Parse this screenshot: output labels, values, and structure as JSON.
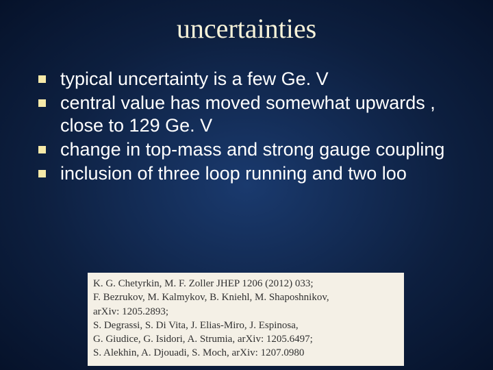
{
  "slide": {
    "title": "uncertainties",
    "title_color": "#f8f3d9",
    "title_fontsize": 40,
    "background_gradient": {
      "center": "#1a3a6e",
      "mid": "#0d1f3f",
      "edge": "#06122a"
    },
    "bullets": [
      {
        "text": "typical uncertainty is a few Ge. V"
      },
      {
        "text": "central value has moved somewhat upwards , close to 129 Ge. V"
      },
      {
        "text": "change in top-mass and strong gauge coupling"
      },
      {
        "text": "inclusion of three loop running and two loo"
      }
    ],
    "bullet_marker_color": "#f6e9a8",
    "bullet_fontsize": 27,
    "bullet_text_color": "#ffffff",
    "references": {
      "background_color": "#f4f0e6",
      "text_color": "#303030",
      "fontsize": 15,
      "lines": [
        "K. G. Chetyrkin, M. F. Zoller JHEP 1206 (2012) 033;",
        "F. Bezrukov, M. Kalmykov, B. Kniehl, M. Shaposhnikov,",
        "arXiv: 1205.2893;",
        "S. Degrassi, S. Di Vita, J. Elias-Miro, J. Espinosa,",
        "G. Giudice, G. Isidori, A. Strumia, arXiv: 1205.6497;",
        "S. Alekhin, A. Djouadi, S. Moch, arXiv: 1207.0980"
      ]
    }
  }
}
